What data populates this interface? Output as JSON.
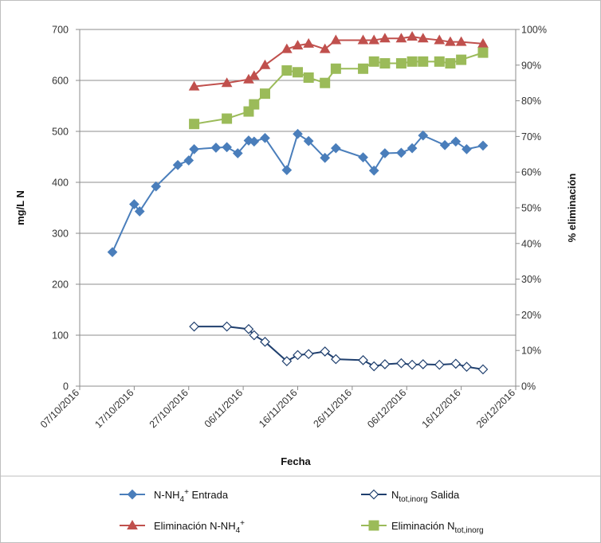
{
  "chart_data": {
    "type": "line",
    "xlabel": "Fecha",
    "ylabel": "mg/L N",
    "y2label": "% eliminación",
    "xlim": [
      "2016-10-07",
      "2016-12-26"
    ],
    "x_ticks": [
      "07/10/2016",
      "17/10/2016",
      "27/10/2016",
      "06/11/2016",
      "16/11/2016",
      "26/11/2016",
      "06/12/2016",
      "16/12/2016",
      "26/12/2016"
    ],
    "ylim": [
      0,
      700
    ],
    "y_ticks": [
      "0",
      "100",
      "200",
      "300",
      "400",
      "500",
      "600",
      "700"
    ],
    "y2lim": [
      0,
      100
    ],
    "y2_ticks": [
      "0%",
      "10%",
      "20%",
      "30%",
      "40%",
      "50%",
      "60%",
      "70%",
      "80%",
      "90%",
      "100%"
    ],
    "grid": "horizontal",
    "legend_position": "bottom",
    "series": [
      {
        "name": "N-NH4+ Entrada",
        "legend_main": "N-NH",
        "legend_sup": "4",
        "legend_sup2": "+",
        "legend_rest": " Entrada",
        "axis": "left",
        "color": "#4a7ebb",
        "marker": "diamond-filled",
        "x": [
          "2016-10-13",
          "2016-10-17",
          "2016-10-18",
          "2016-10-21",
          "2016-10-25",
          "2016-10-27",
          "2016-10-28",
          "2016-11-01",
          "2016-11-03",
          "2016-11-05",
          "2016-11-07",
          "2016-11-08",
          "2016-11-10",
          "2016-11-14",
          "2016-11-16",
          "2016-11-18",
          "2016-11-21",
          "2016-11-23",
          "2016-11-28",
          "2016-11-30",
          "2016-12-02",
          "2016-12-05",
          "2016-12-07",
          "2016-12-09",
          "2016-12-13",
          "2016-12-15",
          "2016-12-17",
          "2016-12-20"
        ],
        "y": [
          263,
          357,
          343,
          392,
          434,
          443,
          465,
          468,
          469,
          457,
          482,
          480,
          487,
          424,
          495,
          481,
          448,
          467,
          449,
          423,
          457,
          458,
          467,
          492,
          473,
          480,
          465,
          472
        ]
      },
      {
        "name": "Ntot,inorg Salida",
        "legend_main": "N",
        "legend_sub": "tot,inorg",
        "legend_rest": " Salida",
        "axis": "left",
        "color": "#1f3f6e",
        "marker": "diamond-open",
        "x": [
          "2016-10-28",
          "2016-11-03",
          "2016-11-07",
          "2016-11-08",
          "2016-11-10",
          "2016-11-14",
          "2016-11-16",
          "2016-11-18",
          "2016-11-21",
          "2016-11-23",
          "2016-11-28",
          "2016-11-30",
          "2016-12-02",
          "2016-12-05",
          "2016-12-07",
          "2016-12-09",
          "2016-12-12",
          "2016-12-15",
          "2016-12-17",
          "2016-12-20"
        ],
        "y": [
          117,
          117,
          112,
          100,
          87,
          49,
          61,
          63,
          68,
          53,
          51,
          39,
          43,
          45,
          42,
          43,
          42,
          44,
          38,
          33
        ]
      },
      {
        "name": "Eliminación N-NH4+",
        "legend_main": "Eliminación N-NH",
        "legend_sup": "4",
        "legend_sup2": "+",
        "legend_rest": "",
        "axis": "right",
        "color": "#c0504d",
        "marker": "triangle",
        "x": [
          "2016-10-28",
          "2016-11-03",
          "2016-11-07",
          "2016-11-08",
          "2016-11-10",
          "2016-11-14",
          "2016-11-16",
          "2016-11-18",
          "2016-11-21",
          "2016-11-23",
          "2016-11-28",
          "2016-11-30",
          "2016-12-02",
          "2016-12-05",
          "2016-12-07",
          "2016-12-09",
          "2016-12-12",
          "2016-12-14",
          "2016-12-16",
          "2016-12-20"
        ],
        "y": [
          84,
          85,
          86,
          87,
          90,
          94.5,
          95.5,
          96,
          94.5,
          97,
          97,
          97,
          97.5,
          97.5,
          98,
          97.5,
          97,
          96.5,
          96.5,
          96
        ]
      },
      {
        "name": "Eliminación Ntot,inorg",
        "legend_main": "Eliminación N",
        "legend_sub": "tot,inorg",
        "legend_rest": "",
        "axis": "right",
        "color": "#9bbb59",
        "marker": "square",
        "x": [
          "2016-10-28",
          "2016-11-03",
          "2016-11-07",
          "2016-11-08",
          "2016-11-10",
          "2016-11-14",
          "2016-11-16",
          "2016-11-18",
          "2016-11-21",
          "2016-11-23",
          "2016-11-28",
          "2016-11-30",
          "2016-12-02",
          "2016-12-05",
          "2016-12-07",
          "2016-12-09",
          "2016-12-12",
          "2016-12-14",
          "2016-12-16",
          "2016-12-20"
        ],
        "y": [
          73.5,
          75,
          77,
          79,
          82,
          88.5,
          88,
          86.5,
          85,
          89,
          89,
          91,
          90.5,
          90.5,
          91,
          91,
          91,
          90.5,
          91.5,
          93.5
        ]
      }
    ]
  }
}
